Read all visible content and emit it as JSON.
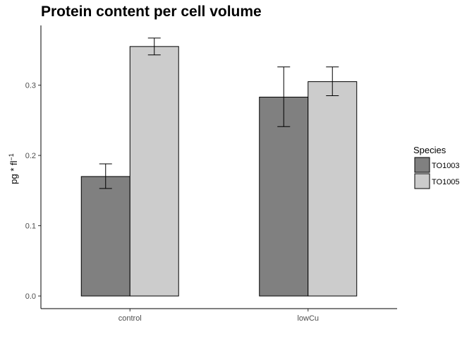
{
  "chart_data": {
    "type": "bar",
    "title": "Protein content per cell volume",
    "xlabel": "",
    "ylabel": "pg * fl",
    "ylabel_exponent": "−1",
    "categories": [
      "control",
      "lowCu"
    ],
    "series": [
      {
        "name": "TO1003",
        "values": [
          0.17,
          0.283
        ],
        "error_low": [
          0.153,
          0.241
        ],
        "error_high": [
          0.188,
          0.326
        ],
        "color": "#808080"
      },
      {
        "name": "TO1005",
        "values": [
          0.355,
          0.305
        ],
        "error_low": [
          0.343,
          0.285
        ],
        "error_high": [
          0.367,
          0.326
        ],
        "color": "#cccccc"
      }
    ],
    "ylim": [
      -0.018,
      0.385
    ],
    "y_ticks": [
      "0.0",
      "0.1",
      "0.2",
      "0.3"
    ],
    "legend": {
      "title": "Species",
      "placement": "right"
    },
    "grid": false
  }
}
